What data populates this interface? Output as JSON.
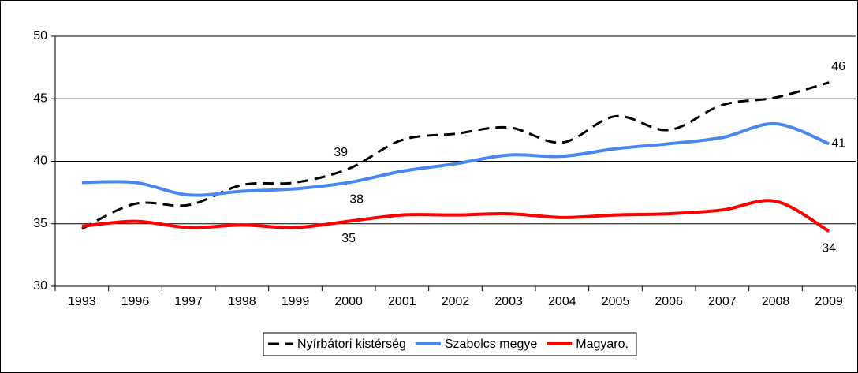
{
  "chart_data": {
    "type": "line",
    "categories": [
      "1993",
      "1996",
      "1997",
      "1998",
      "1999",
      "2000",
      "2001",
      "2002",
      "2003",
      "2004",
      "2005",
      "2006",
      "2007",
      "2008",
      "2009"
    ],
    "series": [
      {
        "name": "Nyírbátori kistérség",
        "color": "#000000",
        "dash": true,
        "values": [
          34.6,
          36.6,
          36.5,
          38.1,
          38.3,
          39.4,
          41.7,
          42.2,
          42.7,
          41.5,
          43.6,
          42.5,
          44.5,
          45.1,
          46.3
        ],
        "value_labels": [
          null,
          null,
          null,
          null,
          null,
          "39",
          null,
          null,
          null,
          null,
          null,
          null,
          null,
          null,
          "46"
        ]
      },
      {
        "name": "Szabolcs megye",
        "color": "#4a86f0",
        "values": [
          38.3,
          38.3,
          37.3,
          37.6,
          37.8,
          38.3,
          39.2,
          39.8,
          40.5,
          40.4,
          41.0,
          41.4,
          41.9,
          43.0,
          41.4
        ],
        "value_labels": [
          null,
          null,
          null,
          null,
          null,
          "38",
          null,
          null,
          null,
          null,
          null,
          null,
          null,
          null,
          "41"
        ]
      },
      {
        "name": "Magyaro.",
        "color": "#ff0000",
        "values": [
          34.8,
          35.2,
          34.7,
          34.9,
          34.7,
          35.2,
          35.7,
          35.7,
          35.8,
          35.5,
          35.7,
          35.8,
          36.1,
          36.8,
          34.4
        ],
        "value_labels": [
          null,
          null,
          null,
          null,
          null,
          "35",
          null,
          null,
          null,
          null,
          null,
          null,
          null,
          null,
          "34"
        ]
      }
    ],
    "ylim": [
      30,
      50
    ],
    "yticks": [
      30,
      35,
      40,
      45,
      50
    ],
    "grid": true,
    "legend": "bottom"
  }
}
